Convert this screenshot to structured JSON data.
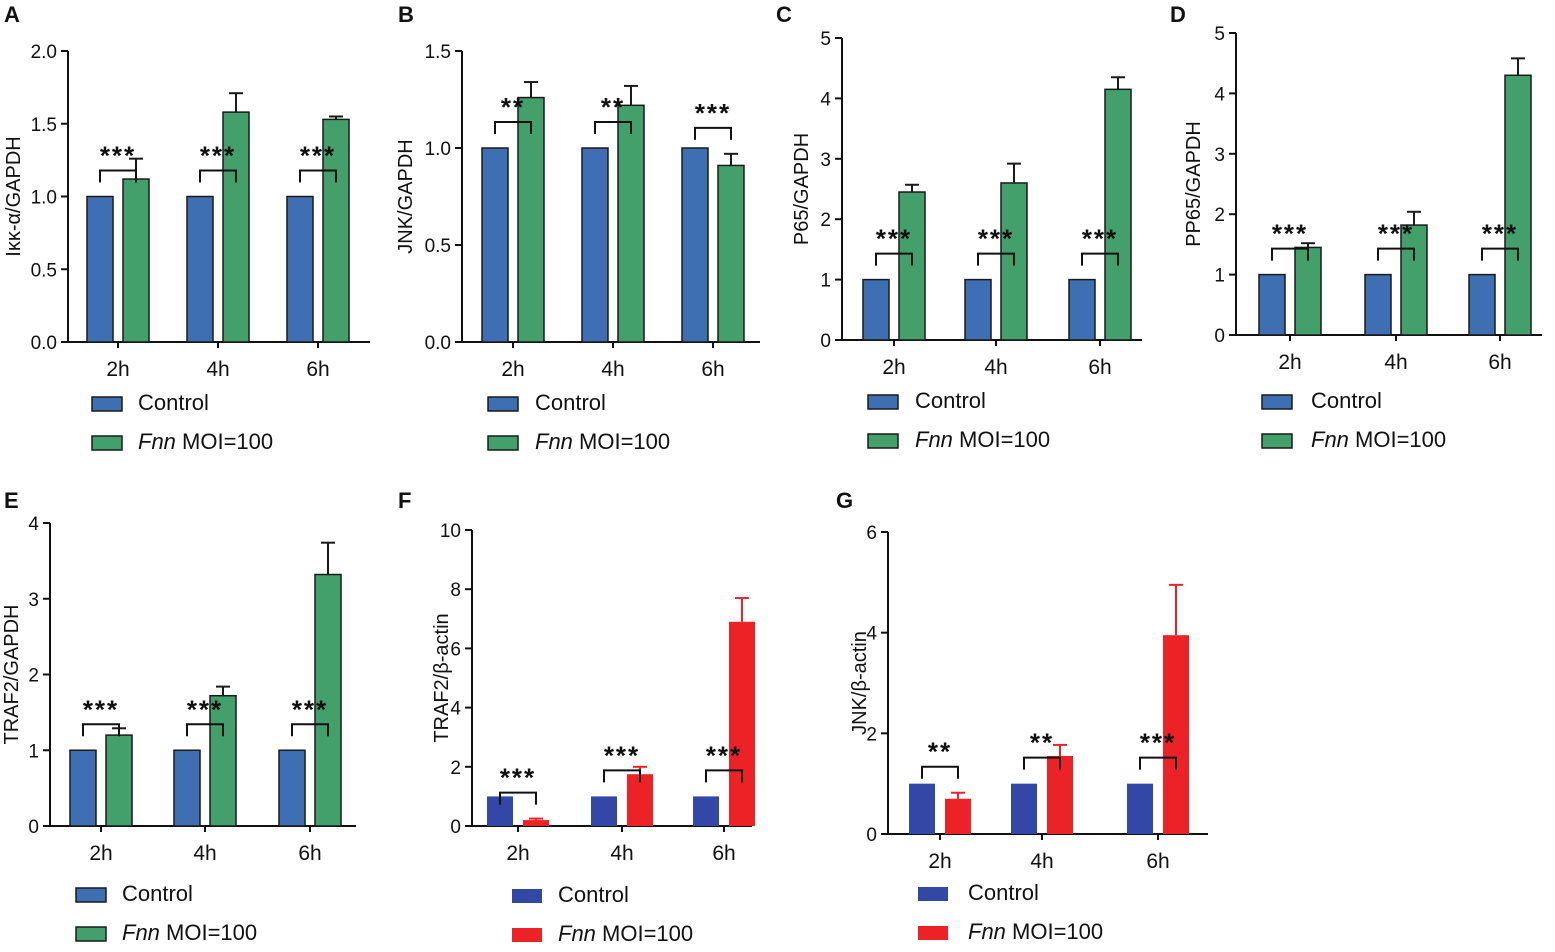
{
  "colors": {
    "control": "#3f6fb3",
    "fnn_green": "#43a06a",
    "fnn_red": "#ec2227",
    "control_vivid": "#3347a6"
  },
  "legend": {
    "control": "Control",
    "fnn_italic": "Fnn",
    "fnn_rest": "MOI=100"
  },
  "chart_data": [
    {
      "panel": "A",
      "type": "bar",
      "ylabel": "Iκκ-α/GAPDH",
      "categories": [
        "2h",
        "4h",
        "6h"
      ],
      "ylim": [
        0,
        2.0
      ],
      "yticks": [
        "0.0",
        "0.5",
        "1.0",
        "1.5",
        "2.0"
      ],
      "ytick_values": [
        0,
        0.5,
        1.0,
        1.5,
        2.0
      ],
      "series": [
        {
          "name": "Control",
          "values": [
            1.0,
            1.0,
            1.0
          ],
          "errors": [
            0,
            0,
            0
          ]
        },
        {
          "name": "Fnn MOI=100",
          "values": [
            1.12,
            1.58,
            1.53
          ],
          "errors": [
            0.14,
            0.13,
            0.02
          ]
        }
      ],
      "significance": [
        "***",
        "***",
        "***"
      ]
    },
    {
      "panel": "B",
      "type": "bar",
      "ylabel": "JNK/GAPDH",
      "categories": [
        "2h",
        "4h",
        "6h"
      ],
      "ylim": [
        0,
        1.5
      ],
      "yticks": [
        "0.0",
        "0.5",
        "1.0",
        "1.5"
      ],
      "ytick_values": [
        0,
        0.5,
        1.0,
        1.5
      ],
      "series": [
        {
          "name": "Control",
          "values": [
            1.0,
            1.0,
            1.0
          ],
          "errors": [
            0,
            0,
            0
          ]
        },
        {
          "name": "Fnn MOI=100",
          "values": [
            1.26,
            1.22,
            0.91
          ],
          "errors": [
            0.08,
            0.1,
            0.06
          ]
        }
      ],
      "significance": [
        "**",
        "**",
        "***"
      ]
    },
    {
      "panel": "C",
      "type": "bar",
      "ylabel": "P65/GAPDH",
      "categories": [
        "2h",
        "4h",
        "6h"
      ],
      "ylim": [
        0,
        5
      ],
      "yticks": [
        "0",
        "1",
        "2",
        "3",
        "4",
        "5"
      ],
      "ytick_values": [
        0,
        1,
        2,
        3,
        4,
        5
      ],
      "series": [
        {
          "name": "Control",
          "values": [
            1.0,
            1.0,
            1.0
          ],
          "errors": [
            0,
            0,
            0
          ]
        },
        {
          "name": "Fnn MOI=100",
          "values": [
            2.45,
            2.6,
            4.15
          ],
          "errors": [
            0.12,
            0.32,
            0.2
          ]
        }
      ],
      "significance": [
        "***",
        "***",
        "***"
      ]
    },
    {
      "panel": "D",
      "type": "bar",
      "ylabel": "PP65/GAPDH",
      "categories": [
        "2h",
        "4h",
        "6h"
      ],
      "ylim": [
        0,
        5
      ],
      "yticks": [
        "0",
        "1",
        "2",
        "3",
        "4",
        "5"
      ],
      "ytick_values": [
        0,
        1,
        2,
        3,
        4,
        5
      ],
      "series": [
        {
          "name": "Control",
          "values": [
            1.0,
            1.0,
            1.0
          ],
          "errors": [
            0,
            0,
            0
          ]
        },
        {
          "name": "Fnn MOI=100",
          "values": [
            1.45,
            1.82,
            4.3
          ],
          "errors": [
            0.07,
            0.22,
            0.28
          ]
        }
      ],
      "significance": [
        "***",
        "***",
        "***"
      ]
    },
    {
      "panel": "E",
      "type": "bar",
      "ylabel": "TRAF2/GAPDH",
      "categories": [
        "2h",
        "4h",
        "6h"
      ],
      "ylim": [
        0,
        4
      ],
      "yticks": [
        "0",
        "1",
        "2",
        "3",
        "4"
      ],
      "ytick_values": [
        0,
        1,
        2,
        3,
        4
      ],
      "series": [
        {
          "name": "Control",
          "values": [
            1.0,
            1.0,
            1.0
          ],
          "errors": [
            0,
            0,
            0
          ]
        },
        {
          "name": "Fnn MOI=100",
          "values": [
            1.2,
            1.72,
            3.32
          ],
          "errors": [
            0.09,
            0.12,
            0.42
          ]
        }
      ],
      "significance": [
        "***",
        "***",
        "***"
      ]
    },
    {
      "panel": "F",
      "type": "bar",
      "ylabel": "TRAF2/β-actin",
      "categories": [
        "2h",
        "4h",
        "6h"
      ],
      "ylim": [
        0,
        10
      ],
      "yticks": [
        "0",
        "2",
        "4",
        "6",
        "8",
        "10"
      ],
      "ytick_values": [
        0,
        2,
        4,
        6,
        8,
        10
      ],
      "series": [
        {
          "name": "Control",
          "values": [
            1.0,
            1.0,
            1.0
          ],
          "errors": [
            0,
            0,
            0
          ]
        },
        {
          "name": "Fnn MOI=100",
          "values": [
            0.2,
            1.75,
            6.9
          ],
          "errors": [
            0.05,
            0.25,
            0.8
          ]
        }
      ],
      "significance": [
        "***",
        "***",
        "***"
      ]
    },
    {
      "panel": "G",
      "type": "bar",
      "ylabel": "JNK/β-actin",
      "categories": [
        "2h",
        "4h",
        "6h"
      ],
      "ylim": [
        0,
        6
      ],
      "yticks": [
        "0",
        "2",
        "4",
        "6"
      ],
      "ytick_values": [
        0,
        2,
        4,
        6
      ],
      "series": [
        {
          "name": "Control",
          "values": [
            1.0,
            1.0,
            1.0
          ],
          "errors": [
            0,
            0,
            0
          ]
        },
        {
          "name": "Fnn MOI=100",
          "values": [
            0.7,
            1.55,
            3.95
          ],
          "errors": [
            0.12,
            0.22,
            1.0
          ]
        }
      ],
      "significance": [
        "**",
        "**",
        "***"
      ]
    }
  ]
}
